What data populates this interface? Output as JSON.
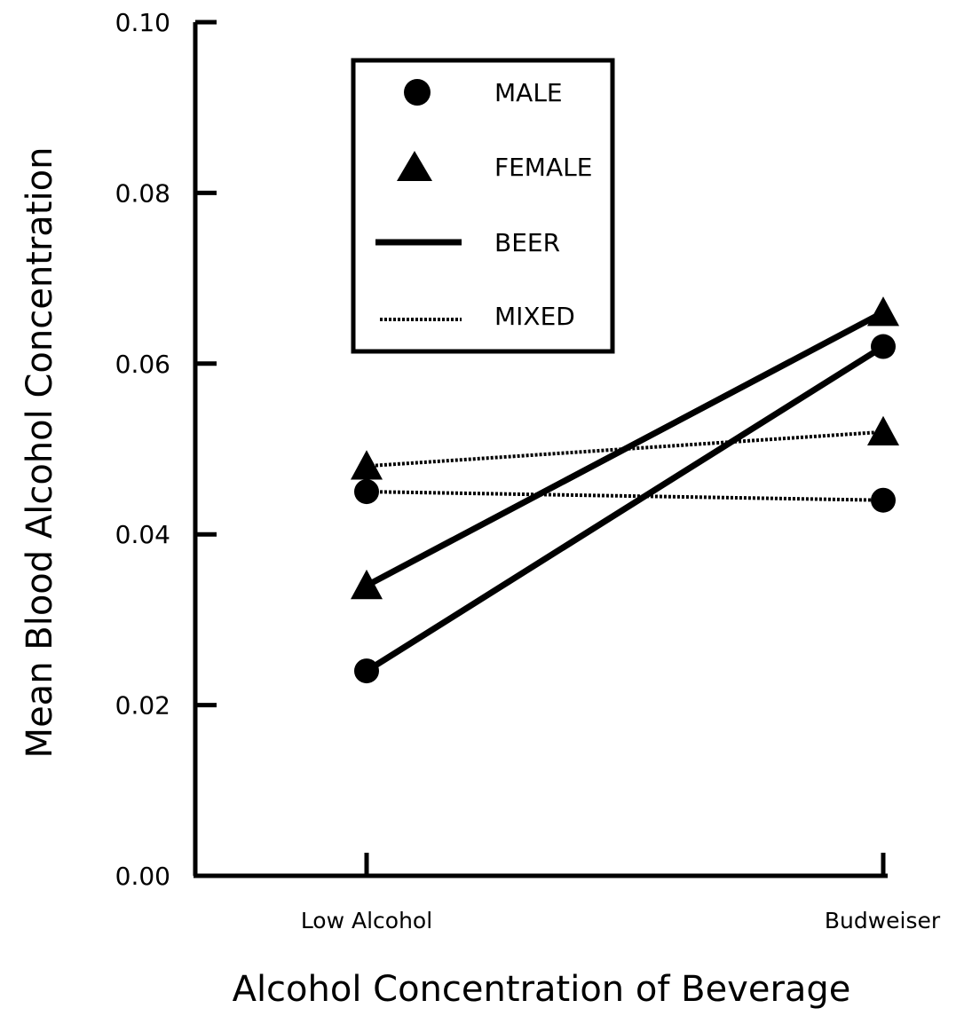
{
  "chart_data": {
    "type": "line",
    "title": "",
    "xlabel": "Alcohol Concentration of Beverage",
    "ylabel": "Mean Blood Alcohol Concentration",
    "categories": [
      "Low Alcohol",
      "Budweiser"
    ],
    "ylim": [
      0.0,
      0.1
    ],
    "yticks": [
      "0.00",
      "0.02",
      "0.04",
      "0.06",
      "0.08",
      "0.10"
    ],
    "grid": false,
    "legend_position": "top-left",
    "legend": [
      {
        "label": "MALE",
        "symbol": "circle"
      },
      {
        "label": "FEMALE",
        "symbol": "triangle"
      },
      {
        "label": "BEER",
        "symbol": "solid-line"
      },
      {
        "label": "MIXED",
        "symbol": "dotted-line"
      }
    ],
    "series": [
      {
        "marker": "triangle",
        "style": "solid",
        "values": [
          0.034,
          0.066
        ]
      },
      {
        "marker": "circle",
        "style": "solid",
        "values": [
          0.024,
          0.062
        ]
      },
      {
        "marker": "triangle",
        "style": "dotted",
        "values": [
          0.048,
          0.052
        ]
      },
      {
        "marker": "circle",
        "style": "dotted",
        "values": [
          0.045,
          0.044
        ]
      }
    ],
    "colors": {
      "ink": "#000000",
      "background": "#ffffff"
    }
  }
}
